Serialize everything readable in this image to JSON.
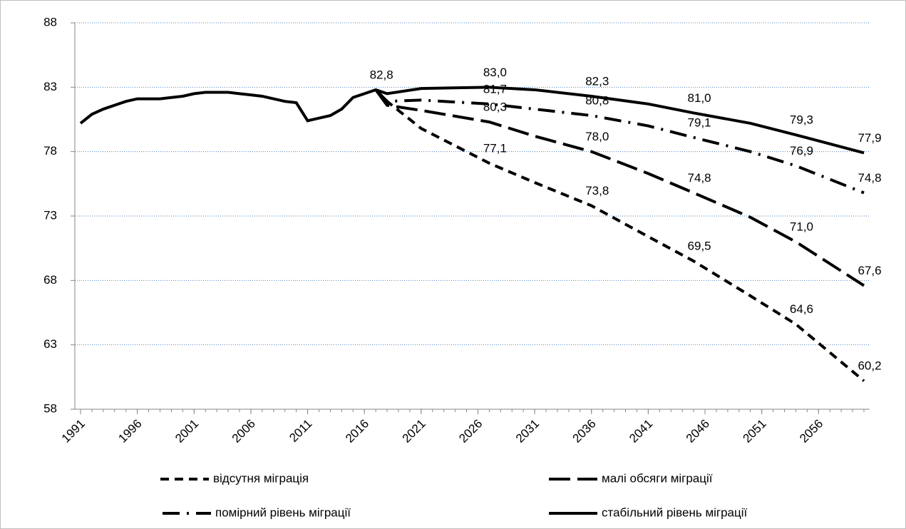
{
  "chart_data": {
    "type": "line",
    "x": [
      1991,
      1992,
      1993,
      1994,
      1995,
      1996,
      1997,
      1998,
      1999,
      2000,
      2001,
      2002,
      2003,
      2004,
      2005,
      2006,
      2007,
      2008,
      2009,
      2010,
      2011,
      2012,
      2013,
      2014,
      2015,
      2016,
      2017,
      2018,
      2021,
      2027,
      2031,
      2036,
      2041,
      2045,
      2050,
      2054,
      2060
    ],
    "xlim": [
      1991,
      2060
    ],
    "xticks": [
      1991,
      1996,
      2001,
      2006,
      2011,
      2016,
      2021,
      2026,
      2031,
      2036,
      2041,
      2046,
      2051,
      2056
    ],
    "ylim": [
      58,
      88
    ],
    "yticks": [
      58,
      63,
      68,
      73,
      78,
      83,
      88
    ],
    "grid": true,
    "series": [
      {
        "name": "відсутня міграція",
        "color": "#000000",
        "dash": "12 8",
        "values": [
          null,
          null,
          null,
          null,
          null,
          null,
          null,
          null,
          null,
          null,
          null,
          null,
          null,
          null,
          null,
          null,
          null,
          null,
          null,
          null,
          null,
          null,
          null,
          null,
          null,
          null,
          82.8,
          81.9,
          79.8,
          77.1,
          75.6,
          73.8,
          71.4,
          69.5,
          66.8,
          64.6,
          60.2
        ],
        "value_labels": [
          null,
          null,
          null,
          null,
          null,
          null,
          null,
          null,
          null,
          null,
          null,
          null,
          null,
          null,
          null,
          null,
          null,
          null,
          null,
          null,
          null,
          null,
          null,
          null,
          null,
          null,
          null,
          null,
          null,
          "77,1",
          null,
          "73,8",
          null,
          "69,5",
          null,
          "64,6",
          "60,2"
        ]
      },
      {
        "name": "малі обсяги міграції",
        "color": "#000000",
        "dash": "30 10",
        "values": [
          null,
          null,
          null,
          null,
          null,
          null,
          null,
          null,
          null,
          null,
          null,
          null,
          null,
          null,
          null,
          null,
          null,
          null,
          null,
          null,
          null,
          null,
          null,
          null,
          null,
          null,
          82.8,
          81.6,
          81.2,
          80.3,
          79.2,
          78.0,
          76.3,
          74.8,
          72.9,
          71.0,
          67.6
        ],
        "value_labels": [
          null,
          null,
          null,
          null,
          null,
          null,
          null,
          null,
          null,
          null,
          null,
          null,
          null,
          null,
          null,
          null,
          null,
          null,
          null,
          null,
          null,
          null,
          null,
          null,
          null,
          null,
          null,
          null,
          null,
          "80,3",
          null,
          "78,0",
          null,
          "74,8",
          null,
          "71,0",
          "67,6"
        ]
      },
      {
        "name": "помірний рівень міграції",
        "color": "#000000",
        "dash": "24 10 3 10",
        "values": [
          null,
          null,
          null,
          null,
          null,
          null,
          null,
          null,
          null,
          null,
          null,
          null,
          null,
          null,
          null,
          null,
          null,
          null,
          null,
          null,
          null,
          null,
          null,
          null,
          null,
          null,
          82.8,
          81.9,
          82.0,
          81.7,
          81.3,
          80.8,
          80.0,
          79.1,
          78.0,
          76.9,
          74.8
        ],
        "value_labels": [
          null,
          null,
          null,
          null,
          null,
          null,
          null,
          null,
          null,
          null,
          null,
          null,
          null,
          null,
          null,
          null,
          null,
          null,
          null,
          null,
          null,
          null,
          null,
          null,
          null,
          null,
          null,
          null,
          null,
          "81,7",
          null,
          "80,8",
          null,
          "79,1",
          null,
          "76,9",
          "74,8"
        ]
      },
      {
        "name": "стабільний рівень міграції",
        "color": "#000000",
        "dash": "none",
        "values": [
          80.2,
          80.9,
          81.3,
          81.6,
          81.9,
          82.1,
          82.1,
          82.1,
          82.2,
          82.3,
          82.5,
          82.6,
          82.6,
          82.6,
          82.5,
          82.4,
          82.3,
          82.1,
          81.9,
          81.8,
          80.4,
          80.6,
          80.8,
          81.3,
          82.2,
          82.5,
          82.8,
          82.5,
          82.9,
          83.0,
          82.8,
          82.3,
          81.7,
          81.0,
          80.2,
          79.3,
          77.9
        ],
        "value_labels": [
          null,
          null,
          null,
          null,
          null,
          null,
          null,
          null,
          null,
          null,
          null,
          null,
          null,
          null,
          null,
          null,
          null,
          null,
          null,
          null,
          null,
          null,
          null,
          null,
          null,
          null,
          "82,8",
          null,
          null,
          "83,0",
          null,
          "82,3",
          null,
          "81,0",
          null,
          "79,3",
          "77,9"
        ]
      }
    ]
  }
}
